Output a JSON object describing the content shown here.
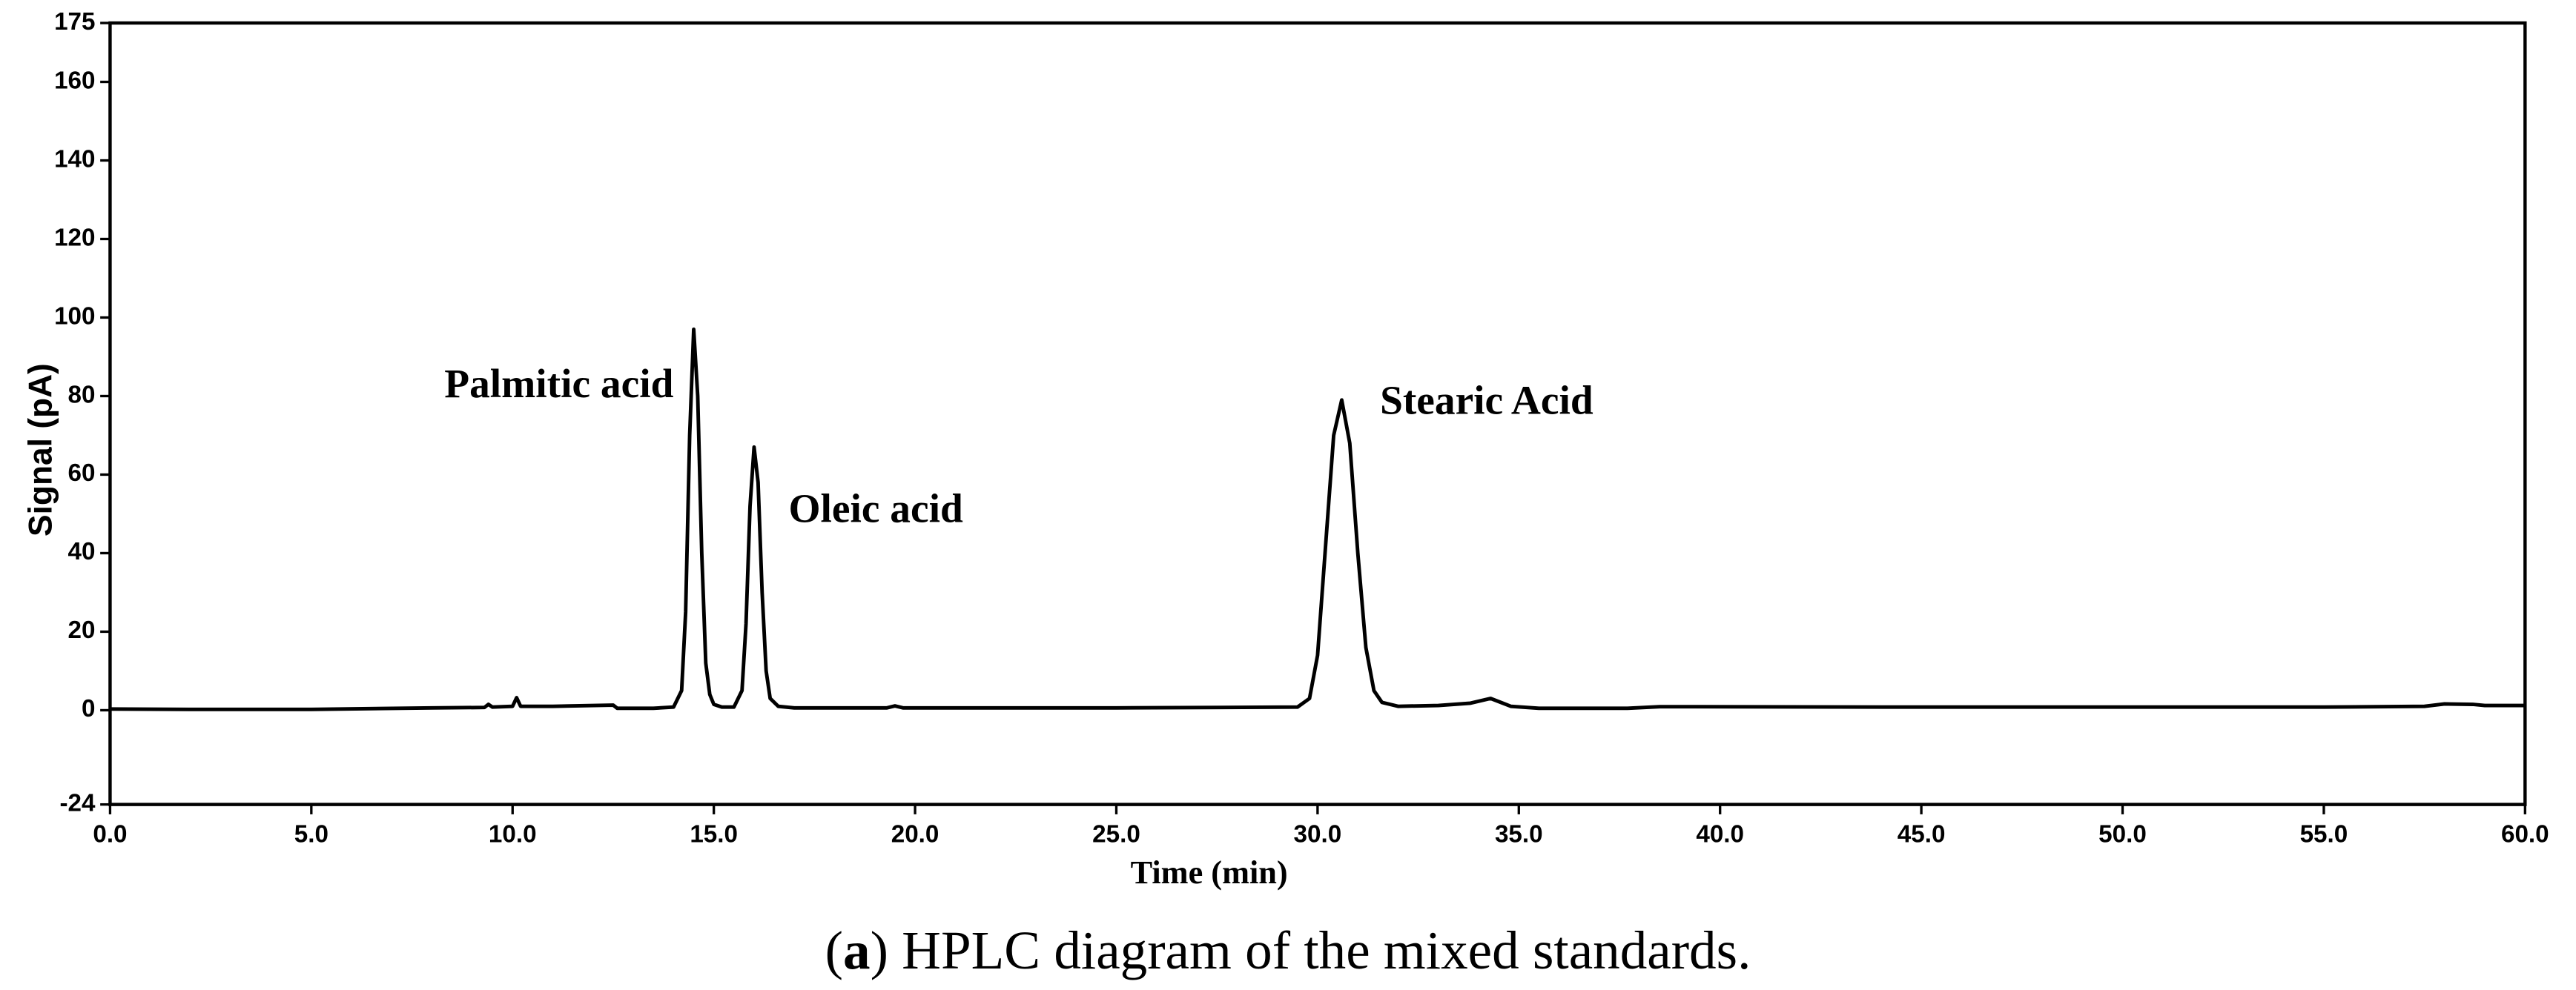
{
  "chart_data": {
    "type": "line",
    "xlabel": "Time (min)",
    "ylabel": "Signal (pA)",
    "annotations": [
      "Palmitic acid",
      "Oleic acid",
      "Stearic Acid"
    ],
    "caption_open": "(",
    "caption_label": "a",
    "caption_text": ") HPLC diagram of the mixed standards.",
    "color": "#000000",
    "x": [
      0,
      2,
      5,
      8,
      9.3,
      9.4,
      9.5,
      10.0,
      10.1,
      10.2,
      11,
      12.5,
      12.6,
      13.5,
      14.0,
      14.2,
      14.3,
      14.4,
      14.5,
      14.6,
      14.7,
      14.8,
      14.9,
      15.0,
      15.2,
      15.5,
      15.7,
      15.8,
      15.9,
      16.0,
      16.1,
      16.2,
      16.3,
      16.4,
      16.6,
      17.0,
      19.3,
      19.5,
      19.7,
      25,
      29.5,
      29.8,
      30.0,
      30.2,
      30.4,
      30.6,
      30.8,
      31.0,
      31.2,
      31.4,
      31.6,
      32.0,
      33.0,
      33.8,
      34.3,
      34.8,
      35.5,
      37.7,
      38.5,
      45,
      55,
      57.5,
      58,
      58.7,
      59,
      60
    ],
    "values": [
      0.3,
      0.2,
      0.2,
      0.6,
      0.7,
      1.5,
      0.8,
      1.0,
      3.2,
      1.0,
      1.0,
      1.3,
      0.5,
      0.5,
      0.8,
      5,
      25,
      70,
      97,
      80,
      40,
      12,
      4,
      1.5,
      0.8,
      0.8,
      5,
      22,
      52,
      67,
      58,
      30,
      10,
      3,
      1,
      0.6,
      0.6,
      1.1,
      0.6,
      0.6,
      0.8,
      3,
      14,
      42,
      70,
      79,
      68,
      40,
      16,
      5,
      2,
      1,
      1.2,
      1.8,
      3,
      1,
      0.5,
      0.5,
      0.9,
      0.8,
      0.8,
      1.0,
      1.6,
      1.5,
      1.2,
      1.2
    ],
    "xlim": [
      0,
      60
    ],
    "ylim": [
      -24,
      175
    ],
    "xticks": [
      {
        "value": 0,
        "label": "0.0"
      },
      {
        "value": 5,
        "label": "5.0"
      },
      {
        "value": 10,
        "label": "10.0"
      },
      {
        "value": 15,
        "label": "15.0"
      },
      {
        "value": 20,
        "label": "20.0"
      },
      {
        "value": 25,
        "label": "25.0"
      },
      {
        "value": 30,
        "label": "30.0"
      },
      {
        "value": 35,
        "label": "35.0"
      },
      {
        "value": 40,
        "label": "40.0"
      },
      {
        "value": 45,
        "label": "45.0"
      },
      {
        "value": 50,
        "label": "50.0"
      },
      {
        "value": 55,
        "label": "55.0"
      },
      {
        "value": 60,
        "label": "60.0"
      }
    ],
    "yticks": [
      -24,
      0,
      20,
      40,
      60,
      80,
      100,
      120,
      140,
      160,
      175
    ],
    "grid": false
  }
}
